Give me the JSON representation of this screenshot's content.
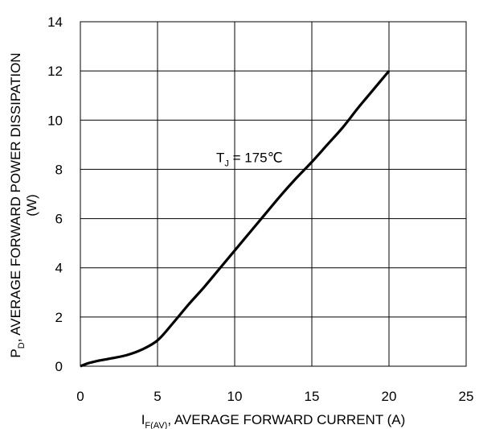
{
  "chart_data": {
    "type": "line",
    "title": "",
    "xlabel": {
      "main": "I",
      "subscript": "F(AV)",
      "rest": ", AVERAGE FORWARD CURRENT (A)"
    },
    "ylabel": {
      "main": "P",
      "subscript": "D",
      "rest": ", AVERAGE FORWARD POWER DISSIPATION",
      "line2": "(W)"
    },
    "xlim": [
      0,
      25
    ],
    "ylim": [
      0,
      14
    ],
    "x_ticks": [
      0,
      5,
      10,
      15,
      20,
      25
    ],
    "y_ticks": [
      0,
      2,
      4,
      6,
      8,
      10,
      12,
      14
    ],
    "grid": true,
    "legend": "none",
    "annotation": {
      "main": "T",
      "subscript": "J",
      "rest": " = 175℃",
      "x": 8.8,
      "y": 8.3
    },
    "series": [
      {
        "color": "#000000",
        "x": [
          0,
          0.5,
          1,
          2,
          3,
          4,
          5,
          6,
          7,
          8,
          9,
          10,
          11,
          12,
          13,
          14,
          15,
          16,
          17,
          18,
          19,
          20
        ],
        "y": [
          0,
          0.12,
          0.2,
          0.32,
          0.45,
          0.68,
          1.05,
          1.75,
          2.5,
          3.2,
          3.95,
          4.7,
          5.45,
          6.2,
          6.95,
          7.65,
          8.3,
          9.0,
          9.7,
          10.5,
          11.25,
          12.0
        ]
      }
    ]
  }
}
